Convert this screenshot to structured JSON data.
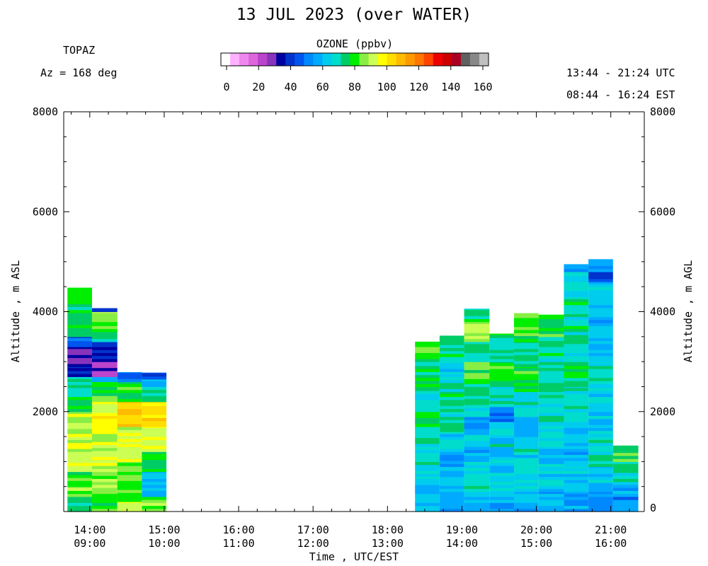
{
  "chart_data": {
    "type": "heatmap",
    "title": "13 JUL 2023 (over WATER)",
    "instrument": "TOPAZ",
    "azimuth_text": "Az = 168 deg",
    "time_range_utc": "13:44 - 21:24 UTC",
    "time_range_est": "08:44 - 16:24 EST",
    "colorbar": {
      "title": "OZONE (ppbv)",
      "ticks": [
        "0",
        "20",
        "40",
        "60",
        "80",
        "100",
        "120",
        "140",
        "160"
      ],
      "range": [
        0,
        160
      ],
      "colors": [
        "#ffffff",
        "#ffb0ff",
        "#ee88ee",
        "#dd66dd",
        "#bb44cc",
        "#8833bb",
        "#0000a0",
        "#0033cc",
        "#0055ee",
        "#0088ff",
        "#00aaff",
        "#00ccee",
        "#00ddcc",
        "#00cc66",
        "#00ee00",
        "#88ee44",
        "#ccff55",
        "#ffff00",
        "#ffdd00",
        "#ffbb00",
        "#ff9900",
        "#ff7700",
        "#ff4400",
        "#ee0000",
        "#cc0000",
        "#aa0022",
        "#606060",
        "#888888",
        "#c0c0c0"
      ]
    },
    "y_axis_left": {
      "label": "Altitude , m ASL",
      "range": [
        0,
        8000
      ],
      "ticks": [
        "8000",
        "6000",
        "4000",
        "2000"
      ]
    },
    "y_axis_right": {
      "label": "Altitude , m AGL",
      "range": [
        0,
        8000
      ],
      "ticks": [
        "8000",
        "6000",
        "4000",
        "2000",
        "0"
      ]
    },
    "x_axis": {
      "label": "Time , UTC/EST",
      "range_utc_hours": [
        13.65,
        21.45
      ],
      "ticks": [
        {
          "utc": "14:00",
          "est": "09:00"
        },
        {
          "utc": "15:00",
          "est": "10:00"
        },
        {
          "utc": "16:00",
          "est": "11:00"
        },
        {
          "utc": "17:00",
          "est": "12:00"
        },
        {
          "utc": "18:00",
          "est": "13:00"
        },
        {
          "utc": "19:00",
          "est": "14:00"
        },
        {
          "utc": "20:00",
          "est": "15:00"
        },
        {
          "utc": "21:00",
          "est": "16:00"
        }
      ]
    },
    "profiles": [
      {
        "start_utc": 13.7,
        "end_utc": 14.03,
        "top_m": 4480,
        "layers": [
          [
            0,
            300,
            75
          ],
          [
            300,
            500,
            85
          ],
          [
            500,
            800,
            80
          ],
          [
            800,
            1200,
            93
          ],
          [
            1200,
            1600,
            90
          ],
          [
            1600,
            2000,
            88
          ],
          [
            2000,
            2300,
            78
          ],
          [
            2300,
            2700,
            72
          ],
          [
            2700,
            2900,
            38
          ],
          [
            2900,
            3300,
            35
          ],
          [
            3300,
            3500,
            45
          ],
          [
            3500,
            4480,
            75
          ]
        ]
      },
      {
        "start_utc": 14.03,
        "end_utc": 14.37,
        "top_m": 4070,
        "layers": [
          [
            0,
            300,
            82
          ],
          [
            300,
            800,
            86
          ],
          [
            800,
            1500,
            90
          ],
          [
            1500,
            1800,
            92
          ],
          [
            1800,
            2200,
            98
          ],
          [
            2200,
            2600,
            80
          ],
          [
            2600,
            2700,
            62
          ],
          [
            2700,
            3000,
            30
          ],
          [
            3000,
            3400,
            40
          ],
          [
            3400,
            3600,
            74
          ],
          [
            3600,
            3800,
            80
          ],
          [
            3800,
            4000,
            88
          ],
          [
            4000,
            4070,
            45
          ]
        ]
      },
      {
        "start_utc": 14.37,
        "end_utc": 14.7,
        "top_m": 2790,
        "layers": [
          [
            0,
            200,
            95
          ],
          [
            200,
            500,
            80
          ],
          [
            500,
            1000,
            82
          ],
          [
            1000,
            1400,
            90
          ],
          [
            1400,
            1700,
            92
          ],
          [
            1700,
            2200,
            102
          ],
          [
            2200,
            2600,
            78
          ],
          [
            2600,
            2790,
            50
          ]
        ]
      },
      {
        "start_utc": 14.7,
        "end_utc": 15.03,
        "top_m": 2780,
        "layers": [
          [
            0,
            300,
            85
          ],
          [
            300,
            800,
            60
          ],
          [
            800,
            1200,
            78
          ],
          [
            1200,
            1700,
            94
          ],
          [
            1700,
            2200,
            104
          ],
          [
            2200,
            2500,
            72
          ],
          [
            2500,
            2650,
            62
          ],
          [
            2650,
            2780,
            45
          ]
        ]
      },
      {
        "start_utc": 18.37,
        "end_utc": 18.7,
        "top_m": 3400,
        "layers": [
          [
            0,
            300,
            58
          ],
          [
            300,
            700,
            62
          ],
          [
            700,
            1300,
            68
          ],
          [
            1300,
            1700,
            70
          ],
          [
            1700,
            2000,
            78
          ],
          [
            2000,
            2500,
            70
          ],
          [
            2500,
            3000,
            74
          ],
          [
            3000,
            3400,
            80
          ]
        ]
      },
      {
        "start_utc": 18.7,
        "end_utc": 19.03,
        "top_m": 3520,
        "layers": [
          [
            0,
            400,
            60
          ],
          [
            400,
            900,
            64
          ],
          [
            900,
            1200,
            58
          ],
          [
            1200,
            1600,
            66
          ],
          [
            1600,
            2000,
            70
          ],
          [
            2000,
            2400,
            74
          ],
          [
            2400,
            2800,
            70
          ],
          [
            2800,
            3100,
            66
          ],
          [
            3100,
            3520,
            76
          ]
        ]
      },
      {
        "start_utc": 19.03,
        "end_utc": 19.37,
        "top_m": 4060,
        "layers": [
          [
            0,
            400,
            62
          ],
          [
            400,
            1000,
            68
          ],
          [
            1000,
            1300,
            58
          ],
          [
            1300,
            1600,
            64
          ],
          [
            1600,
            1900,
            55
          ],
          [
            1900,
            2200,
            70
          ],
          [
            2200,
            2600,
            74
          ],
          [
            2600,
            3000,
            82
          ],
          [
            3000,
            3400,
            70
          ],
          [
            3400,
            3800,
            88
          ],
          [
            3800,
            4060,
            76
          ]
        ]
      },
      {
        "start_utc": 19.37,
        "end_utc": 19.7,
        "top_m": 3560,
        "layers": [
          [
            0,
            300,
            58
          ],
          [
            300,
            800,
            64
          ],
          [
            800,
            1300,
            62
          ],
          [
            1300,
            1800,
            66
          ],
          [
            1800,
            2100,
            52
          ],
          [
            2100,
            2500,
            68
          ],
          [
            2500,
            3000,
            78
          ],
          [
            3000,
            3560,
            72
          ]
        ]
      },
      {
        "start_utc": 19.7,
        "end_utc": 20.03,
        "top_m": 3970,
        "layers": [
          [
            0,
            400,
            60
          ],
          [
            400,
            900,
            64
          ],
          [
            900,
            1500,
            66
          ],
          [
            1500,
            1900,
            62
          ],
          [
            1900,
            2400,
            70
          ],
          [
            2400,
            2900,
            78
          ],
          [
            2900,
            3400,
            72
          ],
          [
            3400,
            3970,
            80
          ]
        ]
      },
      {
        "start_utc": 20.03,
        "end_utc": 20.37,
        "top_m": 3940,
        "layers": [
          [
            0,
            400,
            58
          ],
          [
            400,
            900,
            64
          ],
          [
            900,
            1300,
            62
          ],
          [
            1300,
            1800,
            66
          ],
          [
            1800,
            2400,
            70
          ],
          [
            2400,
            3000,
            74
          ],
          [
            3000,
            3500,
            72
          ],
          [
            3500,
            3940,
            78
          ]
        ]
      },
      {
        "start_utc": 20.37,
        "end_utc": 20.7,
        "top_m": 4950,
        "layers": [
          [
            0,
            400,
            56
          ],
          [
            400,
            900,
            62
          ],
          [
            900,
            1500,
            60
          ],
          [
            1500,
            2000,
            64
          ],
          [
            2000,
            2500,
            68
          ],
          [
            2500,
            3000,
            74
          ],
          [
            3000,
            3600,
            70
          ],
          [
            3600,
            4300,
            72
          ],
          [
            4300,
            4800,
            68
          ],
          [
            4800,
            4950,
            55
          ]
        ]
      },
      {
        "start_utc": 20.7,
        "end_utc": 21.03,
        "top_m": 5050,
        "layers": [
          [
            0,
            400,
            54
          ],
          [
            400,
            900,
            62
          ],
          [
            900,
            1500,
            68
          ],
          [
            1500,
            2000,
            62
          ],
          [
            2000,
            2500,
            66
          ],
          [
            2500,
            3000,
            70
          ],
          [
            3000,
            3600,
            62
          ],
          [
            3600,
            4200,
            60
          ],
          [
            4200,
            4600,
            64
          ],
          [
            4600,
            4800,
            45
          ],
          [
            4800,
            5050,
            55
          ]
        ]
      },
      {
        "start_utc": 21.03,
        "end_utc": 21.37,
        "top_m": 1320,
        "layers": [
          [
            0,
            300,
            52
          ],
          [
            300,
            600,
            60
          ],
          [
            600,
            1000,
            72
          ],
          [
            1000,
            1320,
            78
          ]
        ]
      }
    ]
  }
}
